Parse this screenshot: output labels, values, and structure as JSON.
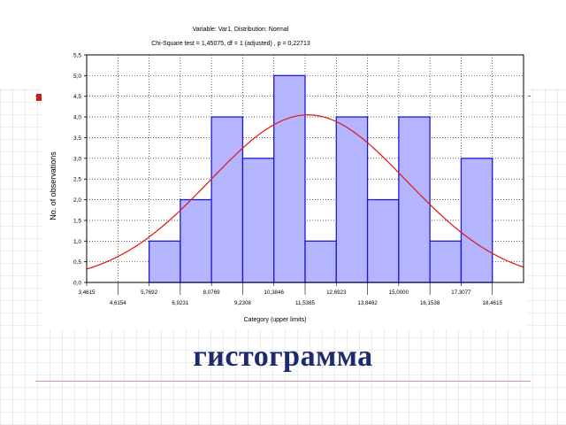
{
  "slide": {
    "caption": "гистограмма",
    "accent_color": "#cc1d1d"
  },
  "chart_data": {
    "type": "bar",
    "title": "Variable: Var1, Distribution: Normal",
    "subtitle": "Chi-Square test = 1,45075, df = 1 (adjusted) , p = 0,22713",
    "xlabel": "Category (upper limits)",
    "ylabel": "No. of observations",
    "x_ticks": [
      "3,4615",
      "4,6154",
      "5,7692",
      "6,9231",
      "8,0769",
      "9,2308",
      "10,3846",
      "11,5385",
      "12,6923",
      "13,8462",
      "15,0000",
      "16,1538",
      "17,3077",
      "18,4615"
    ],
    "y_ticks": [
      "0,0",
      "0,5",
      "1,0",
      "1,5",
      "2,0",
      "2,5",
      "3,0",
      "3,5",
      "4,0",
      "4,5",
      "5,0",
      "5,5"
    ],
    "ylim": [
      0,
      5.5
    ],
    "bin_edges": [
      3.4615,
      4.6154,
      5.7692,
      6.9231,
      8.0769,
      9.2308,
      10.3846,
      11.5385,
      12.6923,
      13.8462,
      15.0,
      16.1538,
      17.3077,
      18.4615,
      19.6154
    ],
    "values": [
      0,
      0,
      1,
      2,
      4,
      3,
      5,
      1,
      4,
      2,
      4,
      1,
      3,
      0
    ],
    "normal_curve": {
      "mean": 11.65,
      "std": 3.64,
      "scale": 4.05
    },
    "grid": true,
    "colors": {
      "bar_fill": "#b4b4ff",
      "bar_stroke": "#1a1ad6",
      "curve": "#e02020",
      "grid": "#000000"
    }
  }
}
